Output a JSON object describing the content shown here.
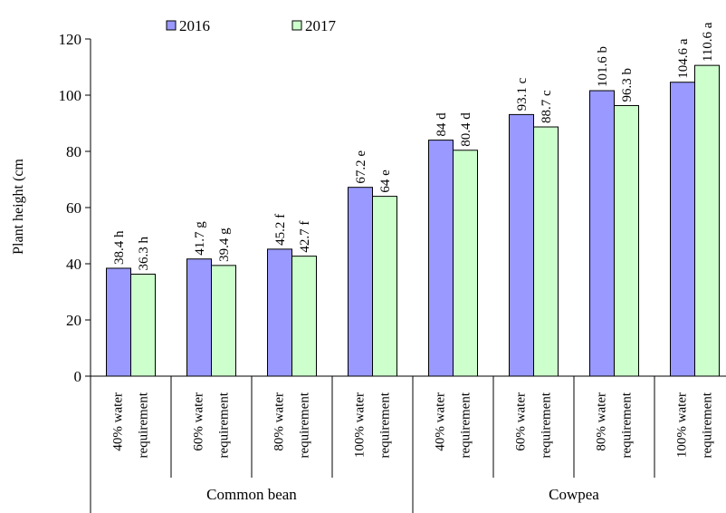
{
  "chart_data": {
    "type": "bar",
    "ylabel": "Plant height (cm",
    "ylim": [
      0,
      120
    ],
    "yticks": [
      "0",
      "20",
      "40",
      "60",
      "80",
      "100",
      "120"
    ],
    "groups": [
      {
        "name": "Common bean",
        "categories": [
          [
            "40% water",
            "requirement"
          ],
          [
            "60% water",
            "requirement"
          ],
          [
            "80% water",
            "requirement"
          ],
          [
            "100% water",
            "requirement"
          ]
        ]
      },
      {
        "name": "Cowpea",
        "categories": [
          [
            "40% water",
            "requirement"
          ],
          [
            "60% water",
            "requirement"
          ],
          [
            "80% water",
            "requirement"
          ],
          [
            "100% water",
            "requirement"
          ]
        ]
      }
    ],
    "series": [
      {
        "name": "2016",
        "color": "#9999ff",
        "values": [
          38.4,
          41.7,
          45.2,
          67.2,
          84,
          93.1,
          101.6,
          104.6
        ],
        "labels": [
          "38.4 h",
          "41.7 g",
          "45.2 f",
          "67.2 e",
          "84 d",
          "93.1 c",
          "101.6 b",
          "104.6 a"
        ]
      },
      {
        "name": "2017",
        "color": "#ccffcc",
        "values": [
          36.3,
          39.4,
          42.7,
          64,
          80.4,
          88.7,
          96.3,
          110.6
        ],
        "labels": [
          "36.3 h",
          "39.4 g",
          "42.7 f",
          "64 e",
          "80.4 d",
          "88.7 c",
          "96.3 b",
          "110.6 a"
        ]
      }
    ],
    "legend_position": "top",
    "grid": false
  }
}
